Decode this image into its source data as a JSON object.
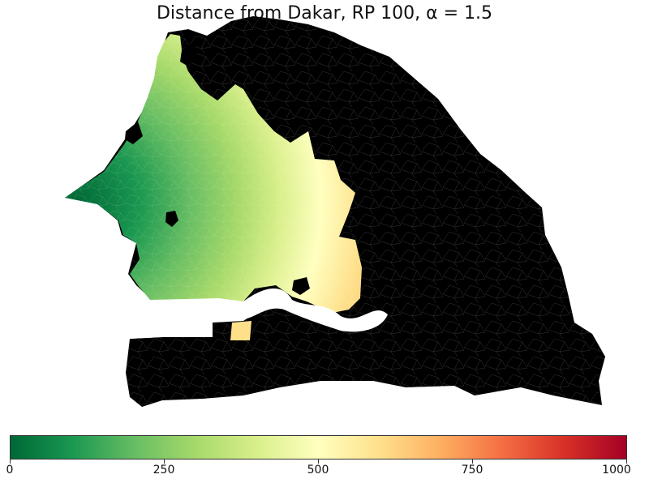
{
  "title": "Distance from Dakar, RP 100, α = 1.5",
  "map": {
    "region": "Senegal",
    "colormap": "RdYlGn_r",
    "unreached_color": "#000000",
    "water_color": "#ffffff"
  },
  "colorbar": {
    "min": 0,
    "max": 1000,
    "ticks": [
      "0",
      "250",
      "500",
      "750",
      "1000"
    ],
    "stops": [
      "#006837",
      "#1a9850",
      "#66bd63",
      "#a6d96a",
      "#d9ef8b",
      "#ffffbf",
      "#fee08b",
      "#fdae61",
      "#f46d43",
      "#d73027",
      "#a50026"
    ]
  }
}
